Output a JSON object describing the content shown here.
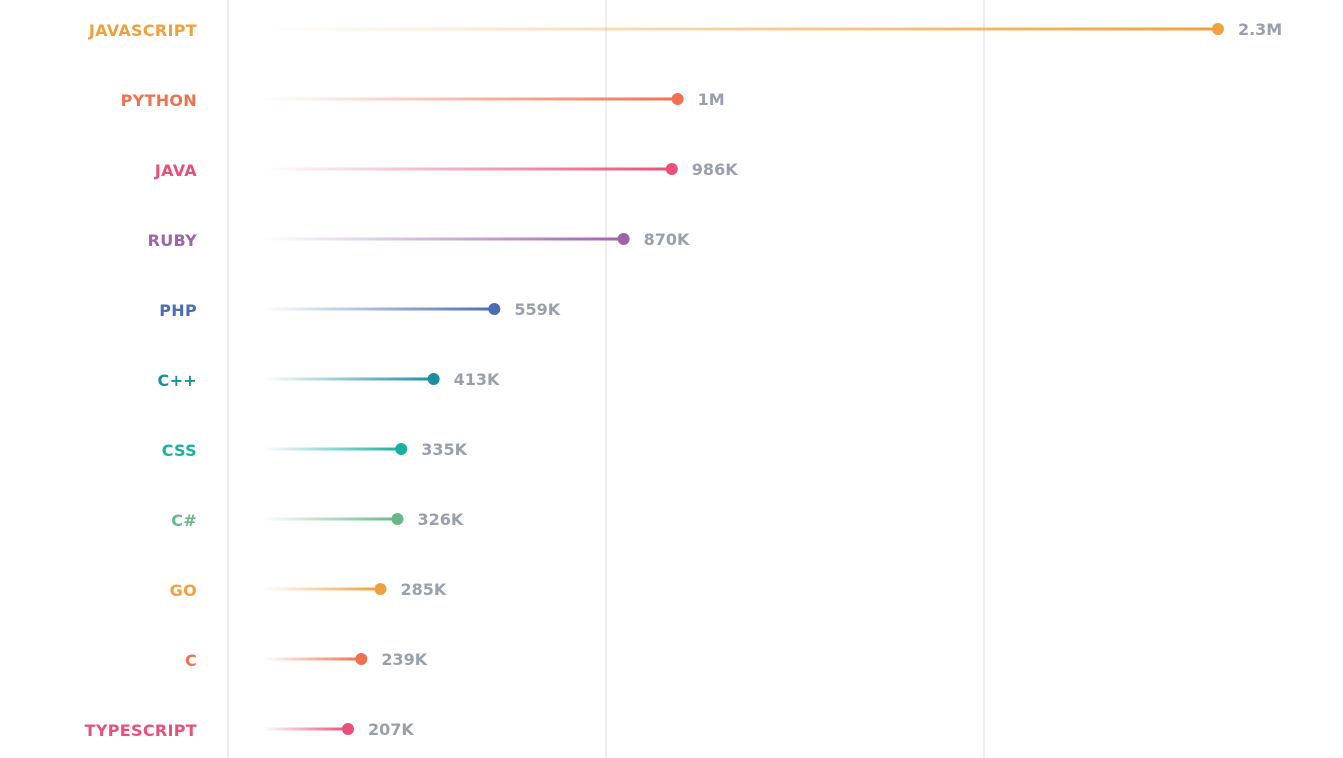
{
  "chart_data": {
    "type": "lollipop",
    "categories": [
      "JAVASCRIPT",
      "PYTHON",
      "JAVA",
      "RUBY",
      "PHP",
      "C++",
      "CSS",
      "C#",
      "GO",
      "C",
      "TYPESCRIPT"
    ],
    "values": [
      2300000,
      1000000,
      986000,
      870000,
      559000,
      413000,
      335000,
      326000,
      285000,
      239000,
      207000
    ],
    "value_labels": [
      "2.3M",
      "1M",
      "986K",
      "870K",
      "559K",
      "413K",
      "335K",
      "326K",
      "285K",
      "239K",
      "207K"
    ],
    "colors": [
      "#f0a03c",
      "#ef7150",
      "#e8507a",
      "#9e63aa",
      "#4a6eb5",
      "#1a8fa0",
      "#18b1a0",
      "#6ab887",
      "#f0a03c",
      "#ef7150",
      "#e8507a"
    ],
    "xlim": [
      0,
      2400000
    ],
    "grid": true,
    "title": "",
    "xlabel": "",
    "ylabel": ""
  }
}
